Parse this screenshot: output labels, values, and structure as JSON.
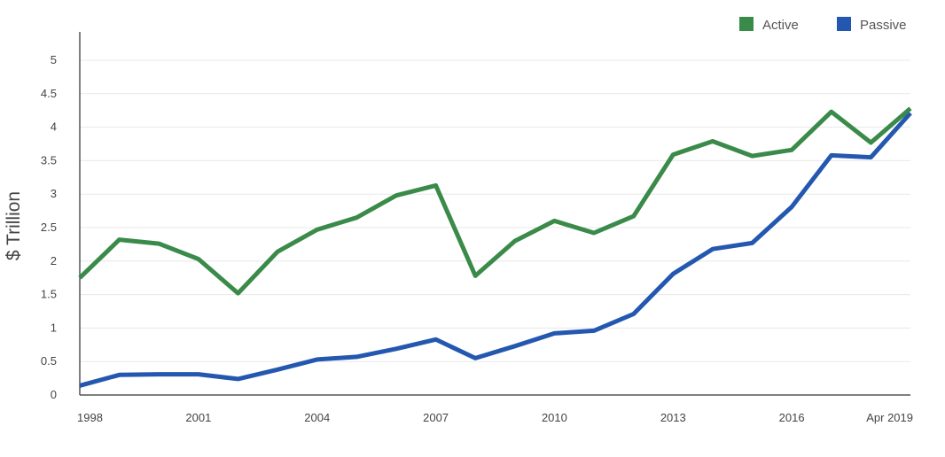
{
  "chart_data": {
    "type": "line",
    "title": "",
    "xlabel": "",
    "ylabel": "$ Trillion",
    "x_tick_labels": [
      "1998",
      "2001",
      "2004",
      "2007",
      "2010",
      "2013",
      "2016",
      "Apr 2019"
    ],
    "y_ticks": [
      0,
      0.5,
      1,
      1.5,
      2,
      2.5,
      3,
      3.5,
      4,
      4.5,
      5
    ],
    "y_tick_labels": [
      "0",
      "0.5",
      "1",
      "1.5",
      "2",
      "2.5",
      "3",
      "3.5",
      "4",
      "4.5",
      "5"
    ],
    "ylim": [
      0,
      5
    ],
    "grid": "horizontal",
    "legend_position": "top-right",
    "x": [
      "1998",
      "1999",
      "2000",
      "2001",
      "2002",
      "2003",
      "2004",
      "2005",
      "2006",
      "2007",
      "2008",
      "2009",
      "2010",
      "2011",
      "2012",
      "2013",
      "2014",
      "2015",
      "2016",
      "2017",
      "2018",
      "Apr 2019"
    ],
    "series": [
      {
        "name": "Active",
        "color": "#3a8a4a",
        "values": [
          1.75,
          2.32,
          2.26,
          2.03,
          1.52,
          2.14,
          2.47,
          2.65,
          2.98,
          3.13,
          1.78,
          2.3,
          2.6,
          2.42,
          2.67,
          3.59,
          3.79,
          3.57,
          3.66,
          4.23,
          3.77,
          4.28
        ]
      },
      {
        "name": "Passive",
        "color": "#2458b0",
        "values": [
          0.14,
          0.3,
          0.31,
          0.31,
          0.24,
          0.38,
          0.53,
          0.57,
          0.69,
          0.83,
          0.55,
          0.73,
          0.92,
          0.96,
          1.21,
          1.81,
          2.18,
          2.27,
          2.81,
          3.58,
          3.55,
          4.21
        ]
      }
    ]
  }
}
